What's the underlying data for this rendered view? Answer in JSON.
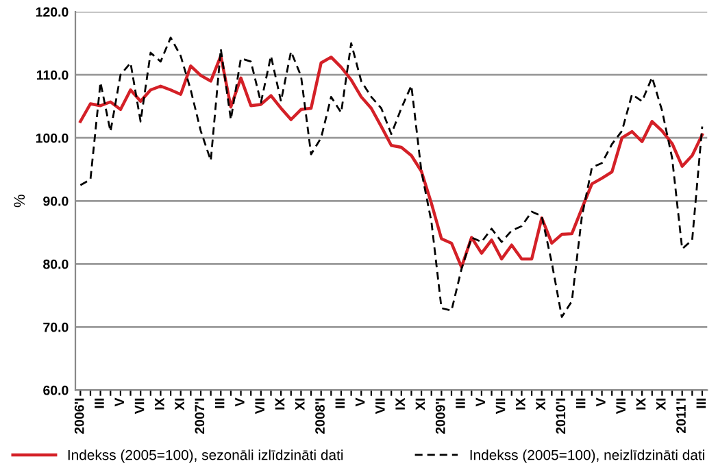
{
  "chart_data": {
    "type": "line",
    "ylabel": "%",
    "categories": [
      "2006'I",
      null,
      "III",
      null,
      "V",
      null,
      "VII",
      null,
      "IX",
      null,
      "XI",
      null,
      "2007'I",
      null,
      "III",
      null,
      "V",
      null,
      "VII",
      null,
      "IX",
      null,
      "XI",
      null,
      "2008'I",
      null,
      "III",
      null,
      "V",
      null,
      "VII",
      null,
      "IX",
      null,
      "XI",
      null,
      "2009'I",
      null,
      "III",
      null,
      "V",
      null,
      "VII",
      null,
      "IX",
      null,
      "XI",
      null,
      "2010'I",
      null,
      "III",
      null,
      "V",
      null,
      "VII",
      null,
      "IX",
      null,
      "XI",
      null,
      "2011'I",
      null,
      "III"
    ],
    "series": [
      {
        "name": "Indekss (2005=100), sezonāli izlīdzināti dati",
        "color": "#d42027",
        "line_style": "solid",
        "values": [
          102.6,
          105.4,
          105.1,
          105.7,
          104.5,
          107.6,
          105.8,
          107.6,
          108.2,
          107.6,
          106.9,
          111.4,
          109.9,
          109.0,
          113.0,
          104.9,
          109.5,
          105.1,
          105.3,
          106.7,
          104.7,
          102.9,
          104.5,
          104.7,
          111.9,
          112.8,
          111.2,
          109.2,
          106.5,
          104.7,
          101.8,
          98.8,
          98.5,
          97.2,
          94.7,
          89.6,
          84.0,
          83.3,
          79.5,
          84.2,
          81.7,
          83.8,
          80.8,
          83.0,
          80.8,
          80.8,
          87.3,
          83.3,
          84.7,
          84.8,
          88.8,
          92.7,
          93.6,
          94.6,
          100.0,
          101.0,
          99.4,
          102.6,
          101.1,
          99.1,
          95.5,
          97.2,
          100.5
        ]
      },
      {
        "name": "Indekss (2005=100), neizlīdzināti dati",
        "color": "#000000",
        "line_style": "dashed",
        "values": [
          92.5,
          93.4,
          108.8,
          101.0,
          110.0,
          111.9,
          102.6,
          113.5,
          112.1,
          115.9,
          113.0,
          107.6,
          101.1,
          96.4,
          114.1,
          102.9,
          112.6,
          112.1,
          105.6,
          113.0,
          105.8,
          113.7,
          109.8,
          97.4,
          100.0,
          106.5,
          104.0,
          115.0,
          109.0,
          106.5,
          104.7,
          100.6,
          104.7,
          108.3,
          94.7,
          86.7,
          73.0,
          72.6,
          79.2,
          84.2,
          83.5,
          85.6,
          83.5,
          85.3,
          86.0,
          88.3,
          87.6,
          80.2,
          71.6,
          74.1,
          87.5,
          95.3,
          96.0,
          99.0,
          101.1,
          106.9,
          105.8,
          109.6,
          104.3,
          96.8,
          82.4,
          83.8,
          101.8
        ]
      }
    ],
    "ylim": [
      60,
      120
    ],
    "yticks": [
      {
        "value": 60,
        "label": "60.0"
      },
      {
        "value": 70,
        "label": "70.0"
      },
      {
        "value": 80,
        "label": "80.0"
      },
      {
        "value": 90,
        "label": "90.0"
      },
      {
        "value": 100,
        "label": "100.0"
      },
      {
        "value": 110,
        "label": "110.0"
      },
      {
        "value": 120,
        "label": "120.0"
      }
    ],
    "grid": "y",
    "legend": "bottom",
    "marker": "none"
  }
}
